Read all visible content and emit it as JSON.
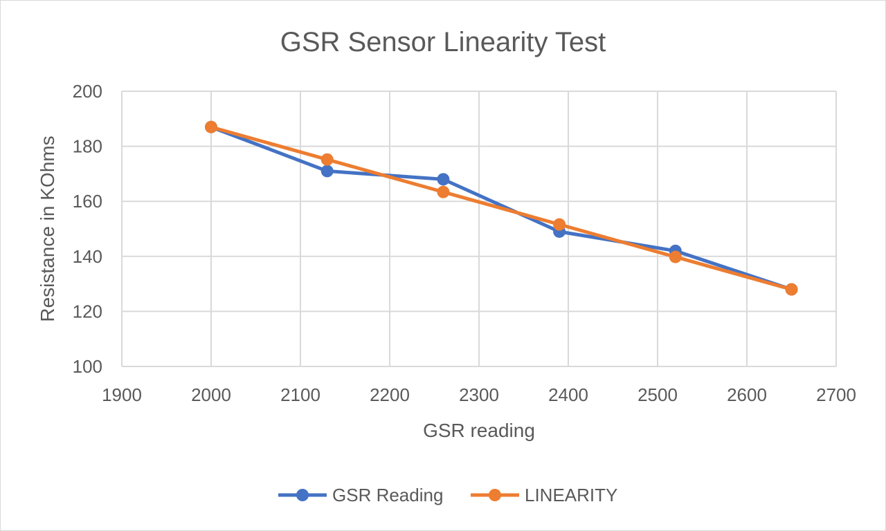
{
  "chart_data": {
    "type": "line",
    "title": "GSR Sensor Linearity Test",
    "xlabel": "GSR reading",
    "ylabel": "Resistance  in KOhms",
    "xlim": [
      1900,
      2700
    ],
    "ylim": [
      100,
      200
    ],
    "xticks": [
      1900,
      2000,
      2100,
      2200,
      2300,
      2400,
      2500,
      2600,
      2700
    ],
    "yticks": [
      100,
      120,
      140,
      160,
      180,
      200
    ],
    "grid": true,
    "legend_position": "bottom",
    "series": [
      {
        "name": "GSR Reading",
        "color": "#4472C4",
        "x": [
          2000,
          2130,
          2260,
          2390,
          2520,
          2650
        ],
        "y": [
          187,
          171,
          168,
          149,
          142,
          128
        ]
      },
      {
        "name": "LINEARITY",
        "color": "#ED7D31",
        "x": [
          2000,
          2130,
          2260,
          2390,
          2520,
          2650
        ],
        "y": [
          187,
          175.2,
          163.4,
          151.6,
          139.8,
          128
        ]
      }
    ]
  }
}
